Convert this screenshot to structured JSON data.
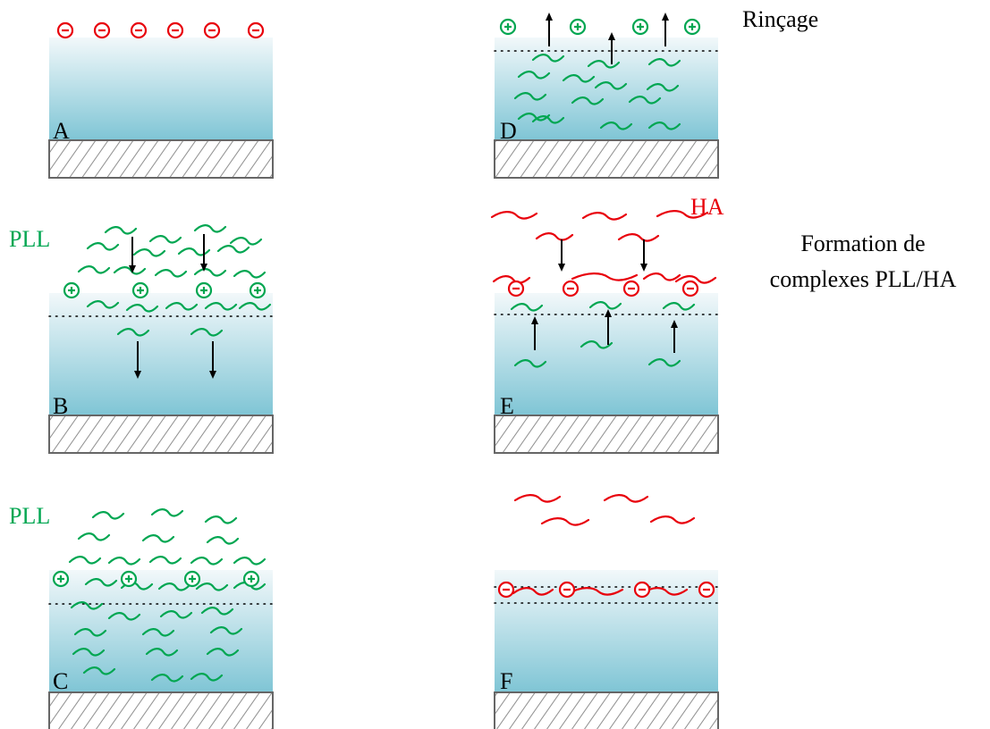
{
  "colors": {
    "negative": "#e8000b",
    "positive": "#00a651",
    "pll_chain": "#00a651",
    "ha_chain": "#e8000b",
    "arrow": "#000000",
    "gradient_top": "#f2f8fa",
    "gradient_bottom": "#7fc5d5",
    "substrate_border": "#666666"
  },
  "labels": {
    "pll_b": "PLL",
    "pll_c": "PLL",
    "ha": "HA",
    "rincage": "Rinçage",
    "formation_line1": "Formation de",
    "formation_line2": "complexes PLL/HA"
  },
  "panels": [
    {
      "letter": "A",
      "surface_charge": "negative",
      "dotted_line": false
    },
    {
      "letter": "B",
      "surface_charge": "positive",
      "dotted_line": true
    },
    {
      "letter": "C",
      "surface_charge": "positive",
      "dotted_line": true
    },
    {
      "letter": "D",
      "surface_charge": "positive",
      "dotted_line": true
    },
    {
      "letter": "E",
      "surface_charge": "negative",
      "dotted_line": true
    },
    {
      "letter": "F",
      "surface_charge": "negative",
      "dotted_line": true
    }
  ],
  "charge_symbols": {
    "negative": "-",
    "positive": "+"
  }
}
